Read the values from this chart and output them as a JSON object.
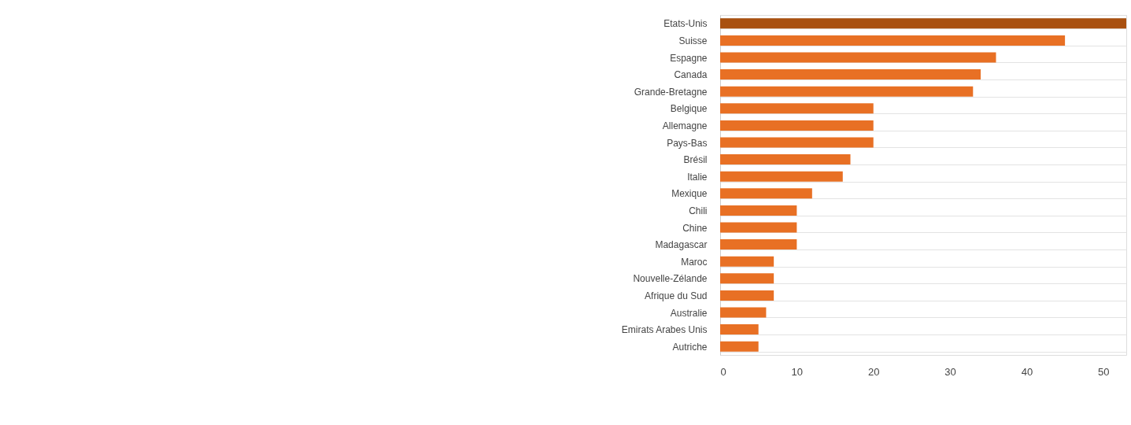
{
  "chart_data": {
    "type": "bar",
    "orientation": "horizontal",
    "categories": [
      "Etats-Unis",
      "Suisse",
      "Espagne",
      "Canada",
      "Grande-Bretagne",
      "Belgique",
      "Allemagne",
      "Pays-Bas",
      "Brésil",
      "Italie",
      "Mexique",
      "Chili",
      "Chine",
      "Madagascar",
      "Maroc",
      "Nouvelle-Zélande",
      "Afrique du Sud",
      "Australie",
      "Emirats Arabes Unis",
      "Autriche"
    ],
    "values": [
      53,
      45,
      36,
      34,
      33,
      20,
      20,
      20,
      17,
      16,
      12,
      10,
      10,
      10,
      7,
      7,
      7,
      6,
      5,
      5
    ],
    "colors": [
      "#a9500f",
      "#e87024",
      "#e87024",
      "#e87024",
      "#e87024",
      "#e87024",
      "#e87024",
      "#e87024",
      "#e87024",
      "#e87024",
      "#e87024",
      "#e87024",
      "#e87024",
      "#e87024",
      "#e87024",
      "#e87024",
      "#e87024",
      "#e87024",
      "#e87024",
      "#e87024"
    ],
    "xlim": [
      0,
      53
    ],
    "xticks": [
      0,
      10,
      20,
      30,
      40,
      50
    ],
    "grid": "y"
  }
}
